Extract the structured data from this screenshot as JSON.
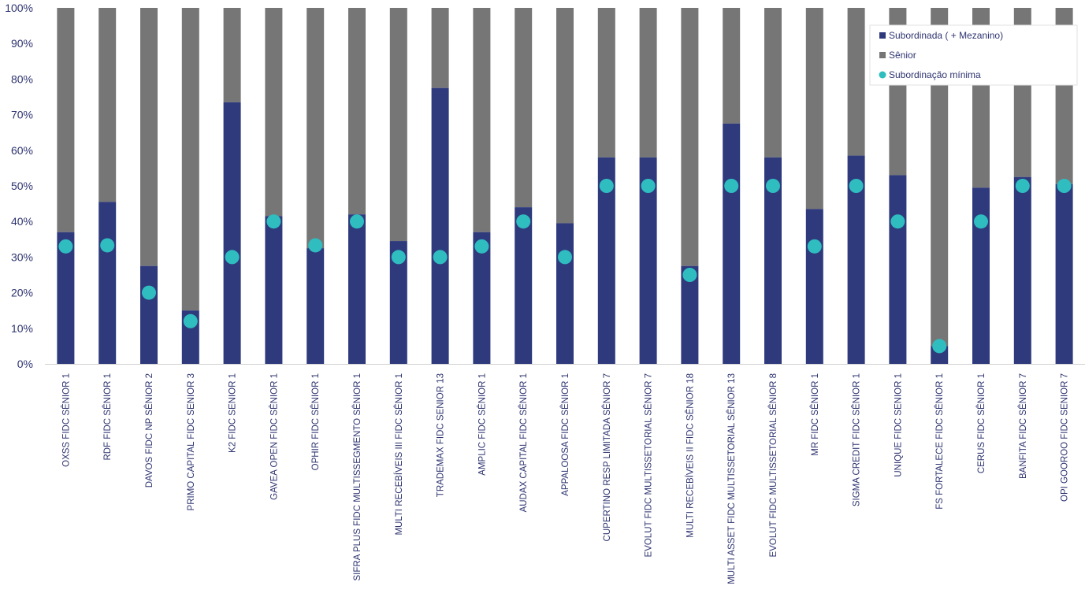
{
  "colors": {
    "subordinada": "#2e3a7c",
    "senior": "#767676",
    "minima": "#2fbdc0",
    "text": "#2e3470",
    "axis": "#d0d0d0"
  },
  "chart_data": {
    "type": "bar",
    "stacked": true,
    "title": "",
    "xlabel": "",
    "ylabel": "",
    "ylim": [
      0,
      100
    ],
    "yticks": [
      "0%",
      "10%",
      "20%",
      "30%",
      "40%",
      "50%",
      "60%",
      "70%",
      "80%",
      "90%",
      "100%"
    ],
    "categories": [
      "OXSS FIDC SÊNIOR 1",
      "RDF FIDC SÊNIOR 1",
      "DAVOS FIDC NP SÊNIOR 2",
      "PRIMO CAPITAL FIDC SENIOR 3",
      "K2 FIDC SENIOR 1",
      "GAVEA OPEN FIDC SÊNIOR 1",
      "OPHIR FIDC SÊNIOR 1",
      "SIFRA PLUS FIDC MULTISSEGMENTO SÊNIOR 1",
      "MULTI RECEBÍVEIS III FIDC SÊNIOR 1",
      "TRADEMAX FIDC SENIOR 13",
      "AMPLIC FIDC SÊNIOR 1",
      "AUDAX CAPITAL FIDC SÊNIOR 1",
      "APPALOOSA FIDC SÊNIOR 1",
      "CUPERTINO RESP LIMITADA SÊNIOR 7",
      "EVOLUT FIDC MULTISSETORIAL SÊNIOR 7",
      "MULTI RECEBÍVEIS II FIDC SÊNIOR 18",
      "MULTI ASSET FIDC MULTISSETORIAL SÊNIOR 13",
      "EVOLUT FIDC MULTISSETORIAL SÊNIOR 8",
      "MR FIDC SÊNIOR 1",
      "SIGMA CREDIT FIDC SÊNIOR 1",
      "UNIQUE FIDC SENIOR 1",
      "FS FORTALECE FIDC SÊNIOR 1",
      "CERUS FIDC SÊNIOR 1",
      "BANFITA FIDC SÊNIOR 7",
      "OPI GOOROO FIDC SENIOR 7"
    ],
    "series": [
      {
        "name": "Subordinada ( + Mezanino)",
        "kind": "bar",
        "values": [
          37,
          45.5,
          27.5,
          15,
          73.5,
          41.5,
          32.5,
          42,
          34.5,
          77.5,
          37,
          44,
          39.5,
          58,
          58,
          27.5,
          67.5,
          58,
          43.5,
          58.5,
          53,
          5,
          49.5,
          52.5,
          50.5
        ]
      },
      {
        "name": "Sênior",
        "kind": "bar",
        "values": [
          63,
          54.5,
          72.5,
          85,
          26.5,
          58.5,
          67.5,
          58,
          65.5,
          22.5,
          63,
          56,
          60.5,
          42,
          42,
          72.5,
          32.5,
          42,
          56.5,
          41.5,
          47,
          95,
          50.5,
          47.5,
          49.5
        ]
      },
      {
        "name": "Subordinação mínima",
        "kind": "marker",
        "values": [
          33,
          33.3,
          20,
          12,
          30,
          40,
          33.3,
          40,
          30,
          30,
          33,
          40,
          30,
          50,
          50,
          25,
          50,
          50,
          33,
          50,
          40,
          5,
          40,
          50,
          50
        ]
      }
    ],
    "legend": {
      "position": "top-right",
      "entries": [
        "Subordinada ( + Mezanino)",
        "Sênior",
        "Subordinação mínima"
      ]
    }
  }
}
